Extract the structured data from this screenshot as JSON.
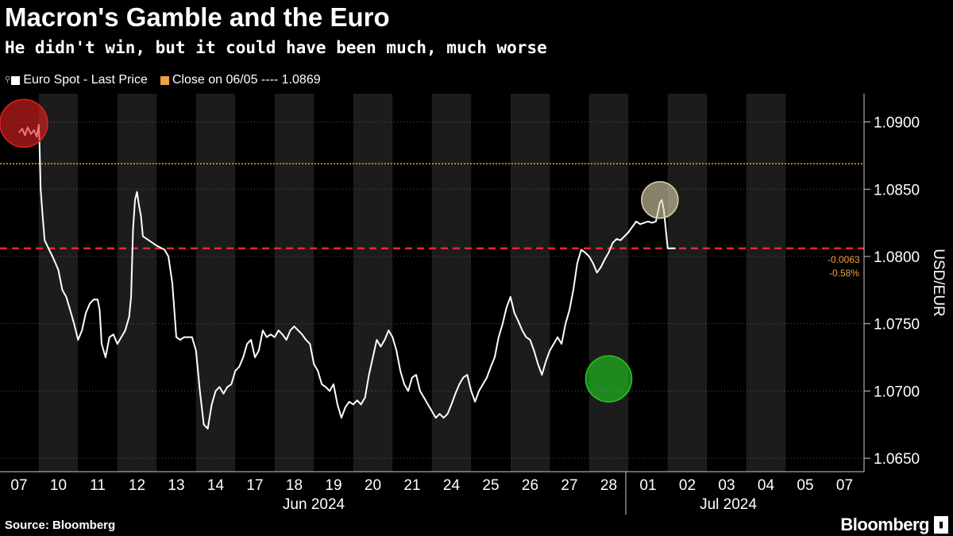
{
  "header": {
    "title": "Macron's Gamble and the Euro",
    "subtitle": "He didn't win, but it could have been much, much worse"
  },
  "legend": {
    "series_label": "Euro Spot - Last Price",
    "close_label": "Close on 06/05 ---- 1.0869"
  },
  "footer": {
    "source": "Source: Bloomberg",
    "brand": "Bloomberg"
  },
  "colors": {
    "background": "#000000",
    "band": "#1c1c1c",
    "line": "#ffffff",
    "close_line": "#f0a040",
    "ref_line": "#e8243a",
    "marker_red": "#e02020",
    "marker_green": "#22cc22",
    "marker_beige": "#d8d2aa"
  },
  "chart_data": {
    "type": "line",
    "title": "Macron's Gamble and the Euro",
    "subtitle": "He didn't win, but it could have been much, much worse",
    "ylabel": "USD/EUR",
    "ylim": [
      1.064,
      1.0921
    ],
    "y_ticks": [
      "1.0900",
      "1.0850",
      "1.0800",
      "1.0750",
      "1.0700",
      "1.0650"
    ],
    "y_tick_values": [
      1.09,
      1.085,
      1.08,
      1.075,
      1.07,
      1.065
    ],
    "x_categories": [
      "07",
      "10",
      "11",
      "12",
      "13",
      "14",
      "17",
      "18",
      "19",
      "20",
      "21",
      "24",
      "25",
      "26",
      "27",
      "28",
      "01",
      "02",
      "03",
      "04",
      "05",
      "07"
    ],
    "month_labels": [
      "Jun 2024",
      "Jul 2024"
    ],
    "close_level": {
      "label": "Close on 06/05",
      "value": 1.0869
    },
    "reference_line": 1.0806,
    "last_change": {
      "abs": "-0.0063",
      "pct": "-0.58%"
    },
    "series": [
      {
        "name": "Euro Spot - Last Price",
        "points": [
          [
            0.0,
            1.0892
          ],
          [
            0.08,
            1.0895
          ],
          [
            0.15,
            1.089
          ],
          [
            0.22,
            1.0896
          ],
          [
            0.3,
            1.0891
          ],
          [
            0.38,
            1.0894
          ],
          [
            0.45,
            1.0889
          ],
          [
            0.5,
            1.0898
          ],
          [
            0.52,
            1.0885
          ],
          [
            0.55,
            1.085
          ],
          [
            0.6,
            1.083
          ],
          [
            0.65,
            1.0812
          ],
          [
            0.75,
            1.0806
          ],
          [
            0.85,
            1.08
          ],
          [
            1.0,
            1.079
          ],
          [
            1.1,
            1.0775
          ],
          [
            1.2,
            1.077
          ],
          [
            1.3,
            1.076
          ],
          [
            1.4,
            1.075
          ],
          [
            1.5,
            1.0738
          ],
          [
            1.6,
            1.0745
          ],
          [
            1.7,
            1.0758
          ],
          [
            1.8,
            1.0765
          ],
          [
            1.9,
            1.0768
          ],
          [
            2.0,
            1.0768
          ],
          [
            2.05,
            1.076
          ],
          [
            2.1,
            1.0735
          ],
          [
            2.2,
            1.0725
          ],
          [
            2.3,
            1.074
          ],
          [
            2.4,
            1.0742
          ],
          [
            2.5,
            1.0735
          ],
          [
            2.6,
            1.074
          ],
          [
            2.7,
            1.0745
          ],
          [
            2.8,
            1.0755
          ],
          [
            2.85,
            1.077
          ],
          [
            2.9,
            1.082
          ],
          [
            2.95,
            1.0842
          ],
          [
            3.0,
            1.0848
          ],
          [
            3.05,
            1.0838
          ],
          [
            3.1,
            1.083
          ],
          [
            3.15,
            1.0815
          ],
          [
            3.3,
            1.0812
          ],
          [
            3.5,
            1.0808
          ],
          [
            3.7,
            1.0805
          ],
          [
            3.8,
            1.08
          ],
          [
            3.9,
            1.078
          ],
          [
            4.0,
            1.074
          ],
          [
            4.1,
            1.0738
          ],
          [
            4.2,
            1.074
          ],
          [
            4.4,
            1.074
          ],
          [
            4.5,
            1.073
          ],
          [
            4.6,
            1.07
          ],
          [
            4.7,
            1.0675
          ],
          [
            4.8,
            1.0672
          ],
          [
            4.9,
            1.069
          ],
          [
            5.0,
            1.07
          ],
          [
            5.1,
            1.0703
          ],
          [
            5.2,
            1.0698
          ],
          [
            5.3,
            1.0703
          ],
          [
            5.4,
            1.0705
          ],
          [
            5.5,
            1.0715
          ],
          [
            5.6,
            1.0718
          ],
          [
            5.7,
            1.0725
          ],
          [
            5.8,
            1.0735
          ],
          [
            5.9,
            1.0738
          ],
          [
            6.0,
            1.0725
          ],
          [
            6.1,
            1.073
          ],
          [
            6.2,
            1.0745
          ],
          [
            6.3,
            1.074
          ],
          [
            6.4,
            1.0742
          ],
          [
            6.5,
            1.074
          ],
          [
            6.6,
            1.0745
          ],
          [
            6.7,
            1.0742
          ],
          [
            6.8,
            1.0738
          ],
          [
            6.9,
            1.0745
          ],
          [
            7.0,
            1.0748
          ],
          [
            7.1,
            1.0745
          ],
          [
            7.2,
            1.0742
          ],
          [
            7.3,
            1.0738
          ],
          [
            7.4,
            1.0735
          ],
          [
            7.5,
            1.072
          ],
          [
            7.6,
            1.0715
          ],
          [
            7.7,
            1.0705
          ],
          [
            7.8,
            1.0703
          ],
          [
            7.9,
            1.07
          ],
          [
            8.0,
            1.0705
          ],
          [
            8.1,
            1.069
          ],
          [
            8.2,
            1.068
          ],
          [
            8.3,
            1.0688
          ],
          [
            8.4,
            1.0692
          ],
          [
            8.5,
            1.069
          ],
          [
            8.6,
            1.0693
          ],
          [
            8.7,
            1.069
          ],
          [
            8.8,
            1.0695
          ],
          [
            8.9,
            1.0712
          ],
          [
            9.0,
            1.0725
          ],
          [
            9.1,
            1.0738
          ],
          [
            9.2,
            1.0733
          ],
          [
            9.3,
            1.0738
          ],
          [
            9.4,
            1.0745
          ],
          [
            9.5,
            1.074
          ],
          [
            9.6,
            1.073
          ],
          [
            9.7,
            1.0715
          ],
          [
            9.8,
            1.0705
          ],
          [
            9.9,
            1.07
          ],
          [
            10.0,
            1.071
          ],
          [
            10.1,
            1.0712
          ],
          [
            10.2,
            1.07
          ],
          [
            10.3,
            1.0695
          ],
          [
            10.4,
            1.069
          ],
          [
            10.5,
            1.0685
          ],
          [
            10.6,
            1.068
          ],
          [
            10.7,
            1.0683
          ],
          [
            10.8,
            1.068
          ],
          [
            10.9,
            1.0683
          ],
          [
            11.0,
            1.069
          ],
          [
            11.1,
            1.0698
          ],
          [
            11.2,
            1.0705
          ],
          [
            11.3,
            1.071
          ],
          [
            11.4,
            1.0712
          ],
          [
            11.5,
            1.07
          ],
          [
            11.6,
            1.0692
          ],
          [
            11.7,
            1.07
          ],
          [
            11.8,
            1.0705
          ],
          [
            11.9,
            1.071
          ],
          [
            12.0,
            1.0718
          ],
          [
            12.1,
            1.0725
          ],
          [
            12.2,
            1.074
          ],
          [
            12.3,
            1.075
          ],
          [
            12.4,
            1.0762
          ],
          [
            12.5,
            1.077
          ],
          [
            12.6,
            1.0758
          ],
          [
            12.7,
            1.0752
          ],
          [
            12.8,
            1.0745
          ],
          [
            12.9,
            1.074
          ],
          [
            13.0,
            1.0738
          ],
          [
            13.1,
            1.073
          ],
          [
            13.2,
            1.072
          ],
          [
            13.3,
            1.0712
          ],
          [
            13.4,
            1.0722
          ],
          [
            13.5,
            1.073
          ],
          [
            13.6,
            1.0735
          ],
          [
            13.7,
            1.074
          ],
          [
            13.8,
            1.0735
          ],
          [
            13.9,
            1.075
          ],
          [
            14.0,
            1.076
          ],
          [
            14.1,
            1.0775
          ],
          [
            14.2,
            1.0795
          ],
          [
            14.3,
            1.0805
          ],
          [
            14.4,
            1.0803
          ],
          [
            14.5,
            1.08
          ],
          [
            14.6,
            1.0795
          ],
          [
            14.7,
            1.0788
          ],
          [
            14.8,
            1.0792
          ],
          [
            14.9,
            1.0798
          ],
          [
            15.0,
            1.0803
          ],
          [
            15.1,
            1.081
          ],
          [
            15.2,
            1.0813
          ],
          [
            15.3,
            1.0812
          ],
          [
            15.4,
            1.0815
          ],
          [
            15.5,
            1.0818
          ],
          [
            15.6,
            1.0822
          ],
          [
            15.7,
            1.0826
          ],
          [
            15.8,
            1.0824
          ],
          [
            15.9,
            1.0825
          ],
          [
            16.0,
            1.0826
          ],
          [
            16.1,
            1.0825
          ],
          [
            16.2,
            1.0826
          ],
          [
            16.3,
            1.084
          ],
          [
            16.35,
            1.0842
          ],
          [
            16.4,
            1.0835
          ],
          [
            16.5,
            1.0806
          ],
          [
            16.7,
            1.0806
          ]
        ]
      }
    ]
  }
}
